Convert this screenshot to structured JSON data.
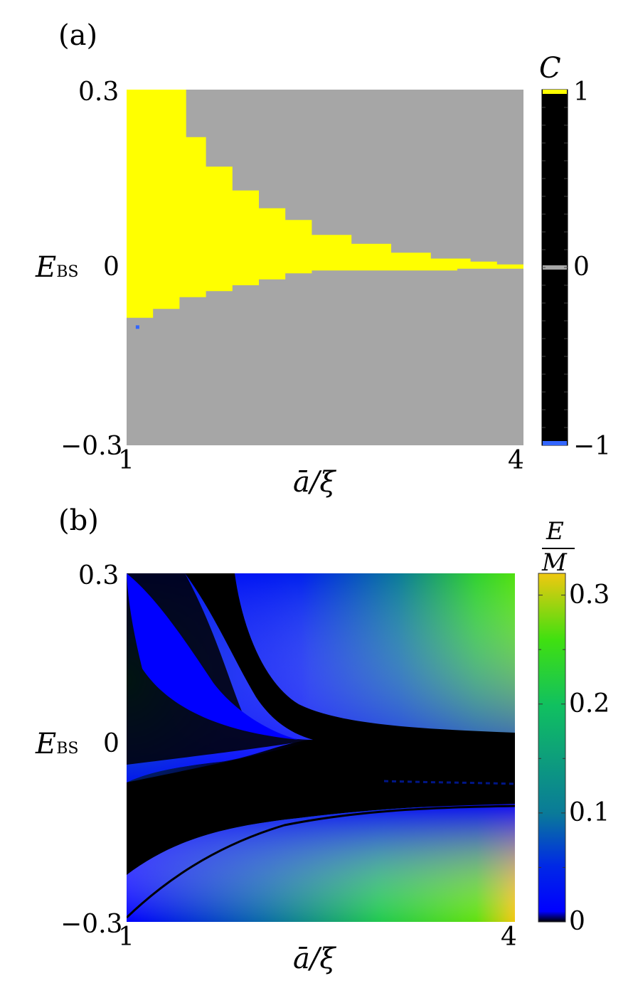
{
  "chart_data": [
    {
      "panel": "(a)",
      "type": "heatmap",
      "xlabel": "ā/ξ",
      "ylabel": "E",
      "ylabel_sub": "BS",
      "xlim": [
        1,
        4
      ],
      "ylim": [
        -0.3,
        0.3
      ],
      "xticks": [
        "1",
        "4"
      ],
      "yticks": [
        "0.3",
        "0",
        "−0.3"
      ],
      "colorbar": {
        "title": "C",
        "ticks": [
          "1",
          "0",
          "−1"
        ],
        "levels": [
          {
            "value": 1,
            "color": "#ffff00"
          },
          {
            "value": 0,
            "color": "#a6a6a6"
          },
          {
            "value": -1,
            "color": "#3366ff"
          }
        ],
        "background": "#000000"
      },
      "regions": [
        {
          "value": 1,
          "color": "#ffff00",
          "upper_boundary": [
            [
              1.0,
              0.3
            ],
            [
              1.3,
              0.3
            ],
            [
              1.45,
              0.22
            ],
            [
              1.6,
              0.17
            ],
            [
              1.8,
              0.13
            ],
            [
              2.0,
              0.1
            ],
            [
              2.2,
              0.08
            ],
            [
              2.4,
              0.055
            ],
            [
              2.7,
              0.04
            ],
            [
              3.0,
              0.025
            ],
            [
              3.3,
              0.015
            ],
            [
              3.6,
              0.01
            ],
            [
              3.8,
              0.005
            ],
            [
              4.0,
              0.005
            ]
          ],
          "lower_boundary": [
            [
              1.0,
              -0.085
            ],
            [
              1.2,
              -0.07
            ],
            [
              1.4,
              -0.05
            ],
            [
              1.6,
              -0.04
            ],
            [
              1.8,
              -0.03
            ],
            [
              2.0,
              -0.02
            ],
            [
              2.2,
              -0.01
            ],
            [
              2.4,
              -0.005
            ],
            [
              2.7,
              -0.005
            ],
            [
              3.0,
              -0.005
            ],
            [
              3.5,
              -0.002
            ],
            [
              4.0,
              0.0
            ]
          ]
        },
        {
          "value": 0,
          "color": "#a6a6a6",
          "note": "background"
        },
        {
          "value": -1,
          "color": "#3366ff",
          "points": [
            [
              1.08,
              -0.1
            ]
          ]
        }
      ]
    },
    {
      "panel": "(b)",
      "type": "heatmap",
      "xlabel": "ā/ξ",
      "ylabel": "E",
      "ylabel_sub": "BS",
      "xlim": [
        1,
        4
      ],
      "ylim": [
        -0.3,
        0.3
      ],
      "xticks": [
        "1",
        "4"
      ],
      "yticks": [
        "0.3",
        "0",
        "−0.3"
      ],
      "colorbar": {
        "title_num": "E",
        "title_den": "M",
        "ticks": [
          "0.3",
          "0.2",
          "0.1",
          "0"
        ],
        "tick_values": [
          0.3,
          0.2,
          0.1,
          0
        ],
        "range": [
          0,
          0.32
        ],
        "colormap": [
          {
            "value": 0,
            "color": "#000000"
          },
          {
            "value": 0.01,
            "color": "#0000ff"
          },
          {
            "value": 0.05,
            "color": "#0028e6"
          },
          {
            "value": 0.1,
            "color": "#0a7a99"
          },
          {
            "value": 0.2,
            "color": "#10c060"
          },
          {
            "value": 0.26,
            "color": "#40e010"
          },
          {
            "value": 0.32,
            "color": "#f0c810"
          }
        ]
      }
    }
  ]
}
